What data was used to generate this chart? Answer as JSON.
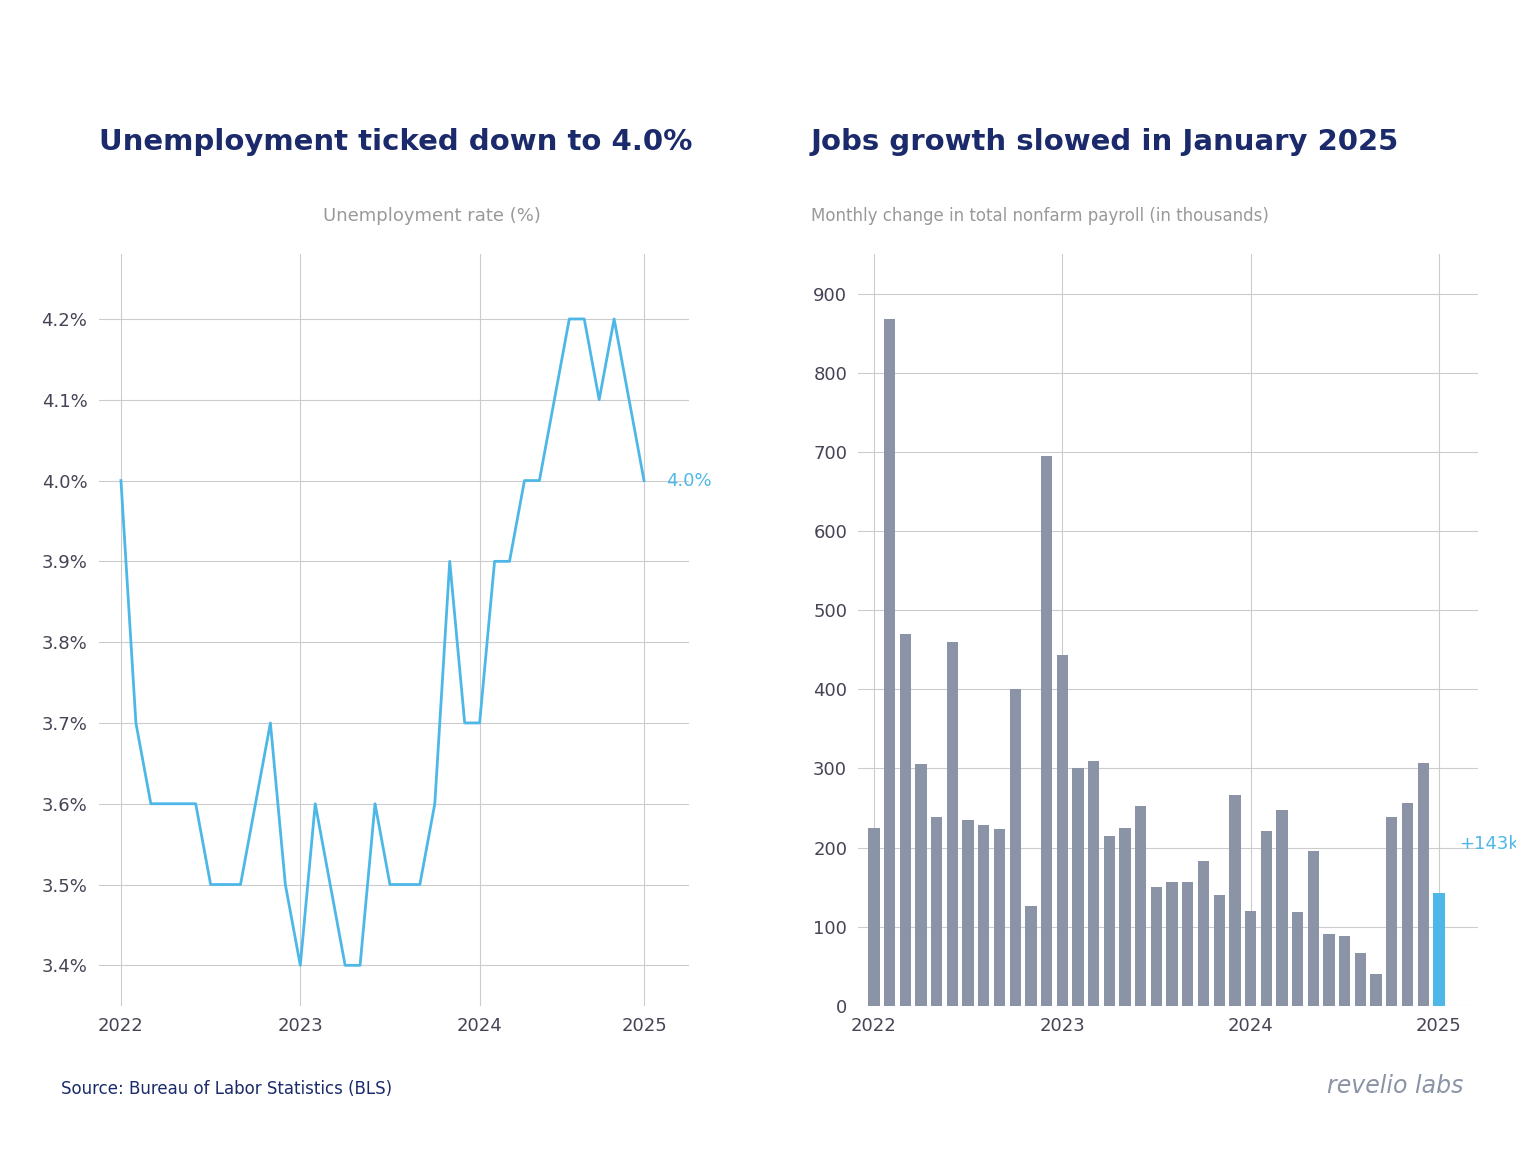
{
  "unemp_title": "Unemployment ticked down to 4.0%",
  "unemp_subtitle": "Unemployment rate (%)",
  "unemp_data": [
    4.0,
    3.7,
    3.6,
    3.6,
    3.6,
    3.6,
    3.5,
    3.5,
    3.5,
    3.6,
    3.7,
    3.5,
    3.4,
    3.6,
    3.5,
    3.4,
    3.4,
    3.6,
    3.5,
    3.5,
    3.5,
    3.6,
    3.9,
    3.7,
    3.7,
    3.9,
    3.9,
    4.0,
    4.0,
    4.1,
    4.2,
    4.2,
    4.1,
    4.2,
    4.1,
    4.0
  ],
  "unemp_ylim": [
    3.35,
    4.28
  ],
  "unemp_yticks": [
    3.4,
    3.5,
    3.6,
    3.7,
    3.8,
    3.9,
    4.0,
    4.1,
    4.2
  ],
  "unemp_line_color": "#4DB8E8",
  "unemp_label_color": "#4DB8E8",
  "unemp_end_label": "4.0%",
  "jobs_title": "Jobs growth slowed in January 2025",
  "jobs_subtitle": "Monthly change in total nonfarm payroll (in thousands)",
  "jobs_data": [
    225,
    868,
    470,
    305,
    239,
    460,
    235,
    229,
    224,
    400,
    126,
    695,
    444,
    300,
    310,
    215,
    225,
    253,
    150,
    157,
    157,
    183,
    140,
    267,
    120,
    221,
    248,
    119,
    195,
    91,
    88,
    67,
    40,
    239,
    256,
    307,
    143
  ],
  "jobs_bar_color_default": "#8A94A6",
  "jobs_bar_color_last": "#4DB8E8",
  "jobs_ylim": [
    0,
    950
  ],
  "jobs_yticks": [
    0,
    100,
    200,
    300,
    400,
    500,
    600,
    700,
    800,
    900
  ],
  "jobs_end_label": "+143k",
  "title_color": "#1B2A6B",
  "subtitle_color": "#999999",
  "tick_color": "#444455",
  "grid_color": "#CCCCCC",
  "source_text": "Source: Bureau of Labor Statistics (BLS)",
  "brand_text": "revelio labs",
  "brand_color": "#8A94A6",
  "background_color": "#FFFFFF"
}
